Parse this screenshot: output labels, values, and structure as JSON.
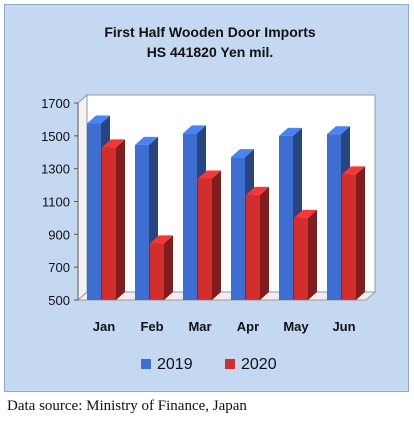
{
  "chart_data": {
    "type": "bar",
    "title": "First Half Wooden Door Imports",
    "subtitle": "HS 441820  Yen mil.",
    "categories": [
      "Jan",
      "Feb",
      "Mar",
      "Apr",
      "May",
      "Jun"
    ],
    "series": [
      {
        "name": "2019",
        "values": [
          1575,
          1445,
          1515,
          1370,
          1500,
          1510
        ],
        "color": "#3d6fd1"
      },
      {
        "name": "2020",
        "values": [
          1430,
          845,
          1240,
          1140,
          1000,
          1265
        ],
        "color": "#d32d2d"
      }
    ],
    "ylim": [
      500,
      1700
    ],
    "yticks": [
      "500",
      "700",
      "900",
      "1100",
      "1300",
      "1500",
      "1700"
    ],
    "grid": false,
    "legend": "bottom"
  },
  "source_note": "Data source: Ministry of Finance, Japan"
}
